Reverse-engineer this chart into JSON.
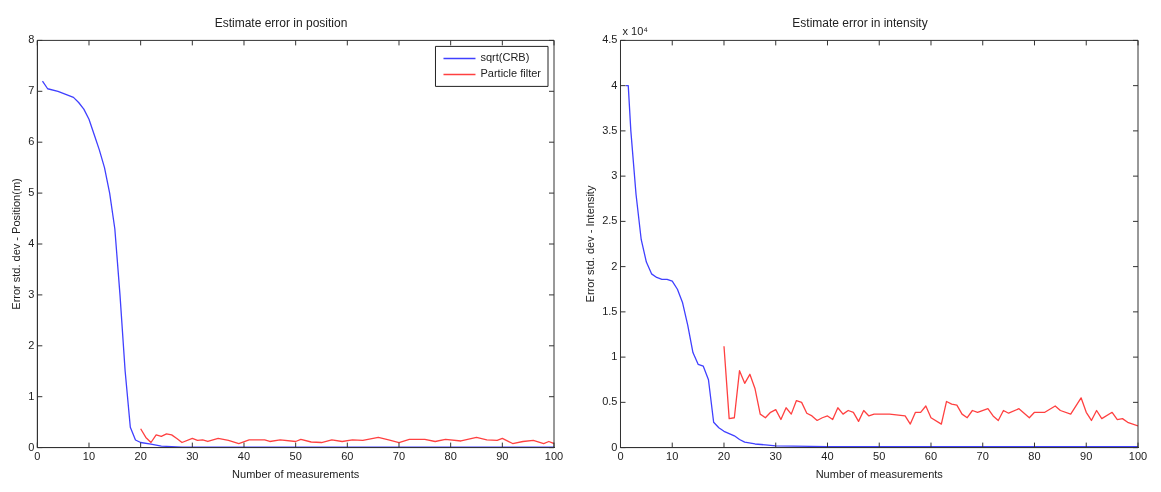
{
  "chart_data": [
    {
      "type": "line",
      "title": "Estimate error in position",
      "xlabel": "Number of measurements",
      "ylabel": "Error std. dev - Position(m)",
      "xlim": [
        0,
        100
      ],
      "xticks": [
        0,
        10,
        20,
        30,
        40,
        50,
        60,
        70,
        80,
        90,
        100
      ],
      "ylim": [
        0,
        8
      ],
      "yticks": [
        0,
        1,
        2,
        3,
        4,
        5,
        6,
        7,
        8
      ],
      "grid": false,
      "legend": "top right",
      "series": [
        {
          "name": "sqrt(CRB)",
          "color": "#4040ff",
          "x": [
            1,
            2,
            4,
            6,
            7,
            8,
            9,
            10,
            11,
            12,
            13,
            14,
            15,
            16,
            17,
            18,
            19,
            20,
            22,
            24,
            28,
            30,
            100
          ],
          "values": [
            7.2,
            7.05,
            7.0,
            6.92,
            6.88,
            6.78,
            6.65,
            6.45,
            6.15,
            5.85,
            5.5,
            5.0,
            4.3,
            3.0,
            1.5,
            0.4,
            0.15,
            0.1,
            0.07,
            0.03,
            0.01,
            0.01,
            0.01
          ]
        },
        {
          "name": "Particle filter",
          "color": "#ff4040",
          "x": [
            20,
            21,
            22,
            23,
            24,
            25,
            26,
            27,
            28,
            30,
            31,
            32,
            33,
            35,
            37,
            39,
            41,
            44,
            45,
            47,
            50,
            51,
            53,
            55,
            57,
            59,
            61,
            63,
            66,
            68,
            70,
            72,
            75,
            77,
            79,
            82,
            85,
            87,
            89,
            90,
            92,
            94,
            96,
            98,
            99,
            100
          ],
          "values": [
            0.37,
            0.2,
            0.1,
            0.25,
            0.22,
            0.27,
            0.25,
            0.18,
            0.1,
            0.18,
            0.14,
            0.15,
            0.12,
            0.18,
            0.14,
            0.08,
            0.15,
            0.15,
            0.12,
            0.15,
            0.12,
            0.16,
            0.11,
            0.1,
            0.15,
            0.12,
            0.15,
            0.14,
            0.2,
            0.15,
            0.1,
            0.16,
            0.16,
            0.12,
            0.16,
            0.13,
            0.2,
            0.15,
            0.14,
            0.18,
            0.08,
            0.12,
            0.14,
            0.08,
            0.12,
            0.08
          ]
        }
      ]
    },
    {
      "type": "line",
      "title": "Estimate error in intensity",
      "xlabel": "Number of measurements",
      "ylabel": "Error std. dev - Intensity",
      "annotations": [
        "x 10⁴"
      ],
      "xlim": [
        0,
        100
      ],
      "xticks": [
        0,
        10,
        20,
        30,
        40,
        50,
        60,
        70,
        80,
        90,
        100
      ],
      "ylim": [
        0,
        4.5
      ],
      "yticks": [
        0,
        0.5,
        1,
        1.5,
        2,
        2.5,
        3,
        3.5,
        4,
        4.5
      ],
      "grid": false,
      "legend": false,
      "series": [
        {
          "color": "#4040ff",
          "x": [
            1,
            1.5,
            2,
            3,
            4,
            5,
            6,
            7,
            8,
            9,
            10,
            11,
            12,
            13,
            14,
            15,
            16,
            17,
            18,
            19,
            20,
            22,
            23,
            24,
            26,
            28,
            30,
            40,
            82,
            100
          ],
          "values": [
            4.0,
            4.0,
            3.5,
            2.8,
            2.3,
            2.05,
            1.92,
            1.88,
            1.86,
            1.86,
            1.84,
            1.75,
            1.6,
            1.35,
            1.05,
            0.92,
            0.9,
            0.75,
            0.28,
            0.22,
            0.18,
            0.13,
            0.09,
            0.06,
            0.04,
            0.03,
            0.02,
            0.01,
            0.01,
            0.01
          ]
        },
        {
          "color": "#ff4040",
          "x": [
            20,
            21,
            22,
            23,
            24,
            25,
            26,
            27,
            28,
            29,
            30,
            31,
            32,
            33,
            34,
            35,
            36,
            37,
            38,
            39,
            40,
            41,
            42,
            43,
            44,
            45,
            46,
            47,
            48,
            49,
            52,
            55,
            56,
            57,
            58,
            59,
            60,
            62,
            63,
            64,
            65,
            66,
            67,
            68,
            69,
            71,
            72,
            73,
            74,
            75,
            77,
            79,
            80,
            82,
            84,
            85,
            87,
            89,
            90,
            91,
            92,
            93,
            95,
            96,
            97,
            98,
            100
          ],
          "values": [
            1.12,
            0.32,
            0.33,
            0.85,
            0.71,
            0.81,
            0.65,
            0.37,
            0.33,
            0.39,
            0.42,
            0.31,
            0.44,
            0.37,
            0.52,
            0.5,
            0.38,
            0.35,
            0.3,
            0.33,
            0.35,
            0.31,
            0.44,
            0.37,
            0.41,
            0.39,
            0.29,
            0.41,
            0.35,
            0.37,
            0.37,
            0.35,
            0.26,
            0.39,
            0.39,
            0.46,
            0.33,
            0.26,
            0.51,
            0.48,
            0.47,
            0.37,
            0.33,
            0.41,
            0.39,
            0.43,
            0.35,
            0.3,
            0.41,
            0.38,
            0.43,
            0.33,
            0.39,
            0.39,
            0.46,
            0.41,
            0.37,
            0.55,
            0.39,
            0.3,
            0.41,
            0.32,
            0.39,
            0.31,
            0.32,
            0.28,
            0.24
          ]
        }
      ]
    }
  ]
}
